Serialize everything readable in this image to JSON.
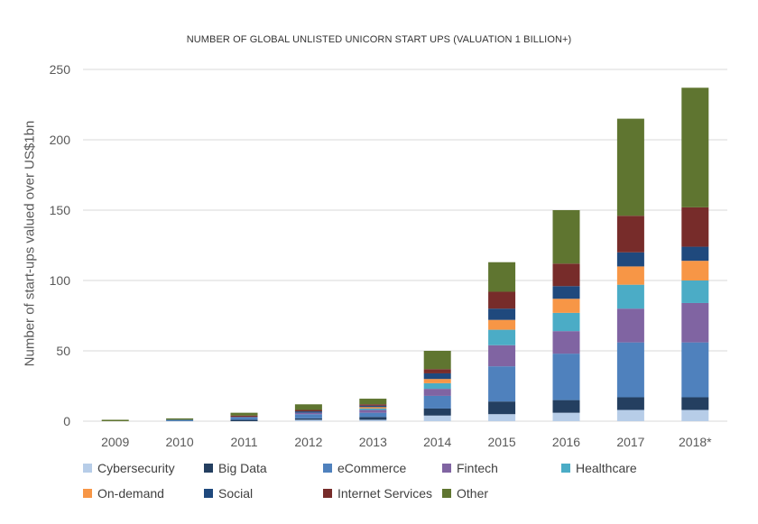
{
  "chart_data": {
    "type": "bar",
    "stacked": true,
    "title": "NUMBER OF GLOBAL UNLISTED UNICORN START UPS (VALUATION 1 BILLION+)",
    "ylabel": "Number of start-ups valued over US$1bn",
    "xlabel": "",
    "ylim": [
      0,
      250
    ],
    "yticks": [
      0,
      50,
      100,
      150,
      200,
      250
    ],
    "grid": true,
    "legend_position": "bottom",
    "categories": [
      "2009",
      "2010",
      "2011",
      "2012",
      "2013",
      "2014",
      "2015",
      "2016",
      "2017",
      "2018*"
    ],
    "series": [
      {
        "name": "Cybersecurity",
        "color": "#b7cde8",
        "values": [
          0,
          0,
          0,
          1,
          1,
          4,
          5,
          6,
          8,
          8
        ]
      },
      {
        "name": "Big Data",
        "color": "#243f60",
        "values": [
          0,
          0,
          1,
          1,
          2,
          5,
          9,
          9,
          9,
          9
        ]
      },
      {
        "name": "eCommerce",
        "color": "#4f81bd",
        "values": [
          0,
          1,
          2,
          3,
          3,
          9,
          25,
          33,
          39,
          39
        ]
      },
      {
        "name": "Fintech",
        "color": "#8064a2",
        "values": [
          0,
          0,
          0,
          1,
          2,
          5,
          15,
          16,
          24,
          28
        ]
      },
      {
        "name": "Healthcare",
        "color": "#4bacc6",
        "values": [
          0,
          0,
          0,
          0,
          1,
          4,
          11,
          13,
          17,
          16
        ]
      },
      {
        "name": "On-demand",
        "color": "#f79646",
        "values": [
          0,
          0,
          0,
          0,
          1,
          3,
          7,
          10,
          13,
          14
        ]
      },
      {
        "name": "Social",
        "color": "#1f497d",
        "values": [
          0,
          0,
          0,
          1,
          1,
          4,
          8,
          9,
          10,
          10
        ]
      },
      {
        "name": "Internet Services",
        "color": "#772c2a",
        "values": [
          0,
          0,
          1,
          1,
          1,
          3,
          12,
          16,
          26,
          28
        ]
      },
      {
        "name": "Other",
        "color": "#5f7530",
        "values": [
          1,
          1,
          2,
          4,
          4,
          13,
          21,
          38,
          69,
          85
        ]
      }
    ]
  }
}
